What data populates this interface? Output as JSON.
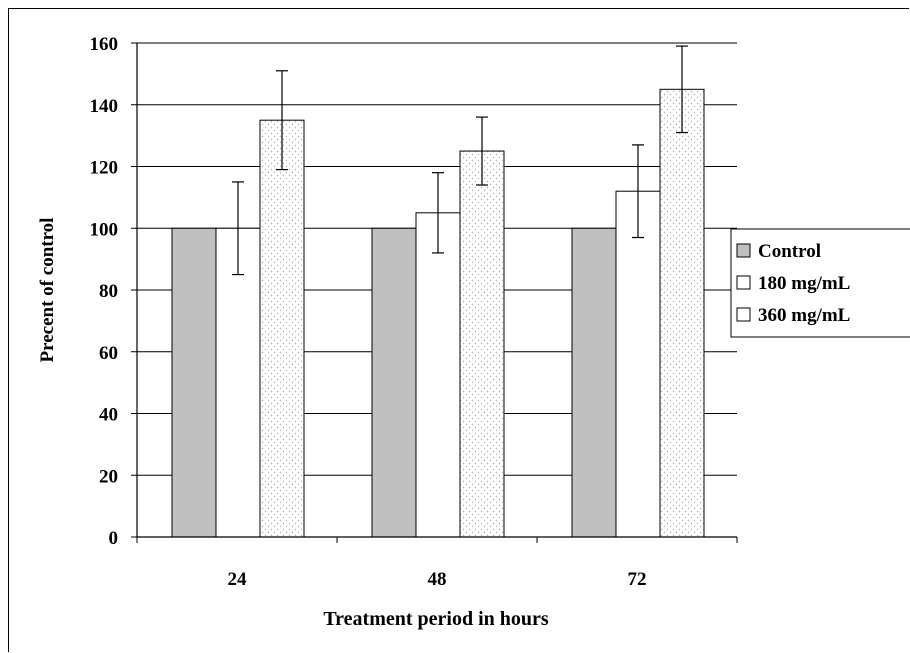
{
  "chart_data": {
    "type": "bar",
    "xlabel": "Treatment period in hours",
    "ylabel": "Precent of control",
    "categories": [
      "24",
      "48",
      "72"
    ],
    "ylim": [
      0,
      160
    ],
    "yticks": [
      "0",
      "20",
      "40",
      "60",
      "80",
      "100",
      "120",
      "140",
      "160"
    ],
    "grid": true,
    "legend_position": "right",
    "series": [
      {
        "name": "Control",
        "values": [
          100,
          100,
          100
        ],
        "errors": [
          0,
          0,
          0
        ],
        "fill": "#c0c0c0",
        "pattern": "solid"
      },
      {
        "name": "180 mg/mL",
        "values": [
          100,
          105,
          112
        ],
        "errors": [
          15,
          13,
          15
        ],
        "fill": "#ffffff",
        "pattern": "solid"
      },
      {
        "name": "360 mg/mL",
        "values": [
          135,
          125,
          145
        ],
        "errors": [
          16,
          11,
          14
        ],
        "fill": "#ffffff",
        "pattern": "dots"
      }
    ]
  }
}
